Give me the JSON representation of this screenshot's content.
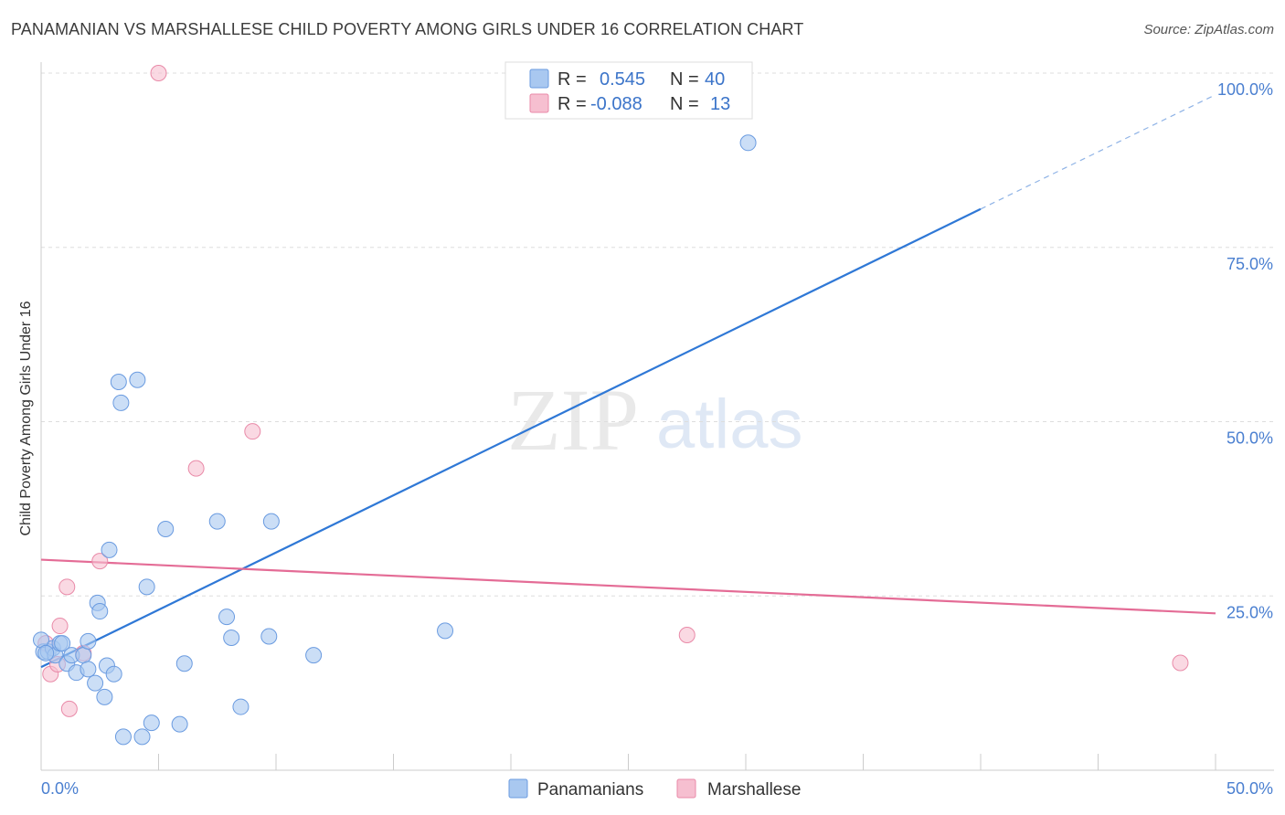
{
  "header": {
    "title": "PANAMANIAN VS MARSHALLESE CHILD POVERTY AMONG GIRLS UNDER 16 CORRELATION CHART",
    "source": "Source: ZipAtlas.com"
  },
  "watermark": {
    "zip": "ZIP",
    "atlas": "atlas"
  },
  "colors": {
    "blue_fill": "#a9c8f0",
    "blue_stroke": "#6a9be0",
    "blue_line": "#2f78d6",
    "pink_fill": "#f6bfd0",
    "pink_stroke": "#e98aa8",
    "pink_line": "#e46c96",
    "tick_label": "#4a7fd0",
    "grid": "#dddddd"
  },
  "legend": {
    "rows": [
      {
        "r_label": "R =",
        "r_value": "0.545",
        "n_label": "N =",
        "n_value": "40"
      },
      {
        "r_label": "R =",
        "r_value": "-0.088",
        "n_label": "N =",
        "n_value": "13"
      }
    ]
  },
  "chart_data": {
    "type": "scatter",
    "title": "PANAMANIAN VS MARSHALLESE CHILD POVERTY AMONG GIRLS UNDER 16 CORRELATION CHART",
    "xlabel": "",
    "ylabel": "Child Poverty Among Girls Under 16",
    "xlim": [
      0,
      50
    ],
    "ylim": [
      0,
      100
    ],
    "x_tick_labels": [
      "0.0%",
      "50.0%"
    ],
    "y_ticks": [
      25,
      50,
      75,
      100
    ],
    "y_tick_labels": [
      "25.0%",
      "50.0%",
      "75.0%",
      "100.0%"
    ],
    "grid": true,
    "legend_position": "top-center",
    "series": [
      {
        "name": "Panamanians",
        "color": "blue",
        "r": 0.545,
        "n": 40,
        "points": [
          [
            0.1,
            17.0
          ],
          [
            0.3,
            17.0
          ],
          [
            0.5,
            17.5
          ],
          [
            0.6,
            16.5
          ],
          [
            0.8,
            18.2
          ],
          [
            0.9,
            18.2
          ],
          [
            1.1,
            15.3
          ],
          [
            1.3,
            16.5
          ],
          [
            1.5,
            14.0
          ],
          [
            1.8,
            16.5
          ],
          [
            2.0,
            14.5
          ],
          [
            2.0,
            18.5
          ],
          [
            2.3,
            12.5
          ],
          [
            2.4,
            24.0
          ],
          [
            2.5,
            22.8
          ],
          [
            2.7,
            10.5
          ],
          [
            2.8,
            15.0
          ],
          [
            2.9,
            31.6
          ],
          [
            3.1,
            13.8
          ],
          [
            3.3,
            55.7
          ],
          [
            3.4,
            52.7
          ],
          [
            3.5,
            4.8
          ],
          [
            4.1,
            56.0
          ],
          [
            4.3,
            4.8
          ],
          [
            4.5,
            26.3
          ],
          [
            4.7,
            6.8
          ],
          [
            5.3,
            34.6
          ],
          [
            5.9,
            6.6
          ],
          [
            6.1,
            15.3
          ],
          [
            7.5,
            35.7
          ],
          [
            7.9,
            22.0
          ],
          [
            8.1,
            19.0
          ],
          [
            8.5,
            9.1
          ],
          [
            9.7,
            19.2
          ],
          [
            9.8,
            35.7
          ],
          [
            11.6,
            16.5
          ],
          [
            17.2,
            20.0
          ],
          [
            30.1,
            90.0
          ],
          [
            0.0,
            18.7
          ],
          [
            0.2,
            16.8
          ]
        ],
        "trend": {
          "x_start": 0,
          "y_start": 14.8,
          "x_solid_end": 40,
          "y_solid_end": 80.5,
          "x_end": 50,
          "y_end": 96.9
        }
      },
      {
        "name": "Marshallese",
        "color": "pink",
        "r": -0.088,
        "n": 13,
        "points": [
          [
            0.2,
            18.2
          ],
          [
            0.4,
            13.8
          ],
          [
            0.7,
            15.2
          ],
          [
            0.8,
            20.7
          ],
          [
            1.1,
            26.3
          ],
          [
            1.2,
            8.8
          ],
          [
            1.8,
            16.8
          ],
          [
            2.5,
            30.0
          ],
          [
            5.0,
            100.0
          ],
          [
            6.6,
            43.3
          ],
          [
            9.0,
            48.6
          ],
          [
            27.5,
            19.4
          ],
          [
            48.5,
            15.4
          ]
        ],
        "trend": {
          "x_start": 0,
          "y_start": 30.2,
          "x_end": 50,
          "y_end": 22.5
        }
      }
    ]
  }
}
